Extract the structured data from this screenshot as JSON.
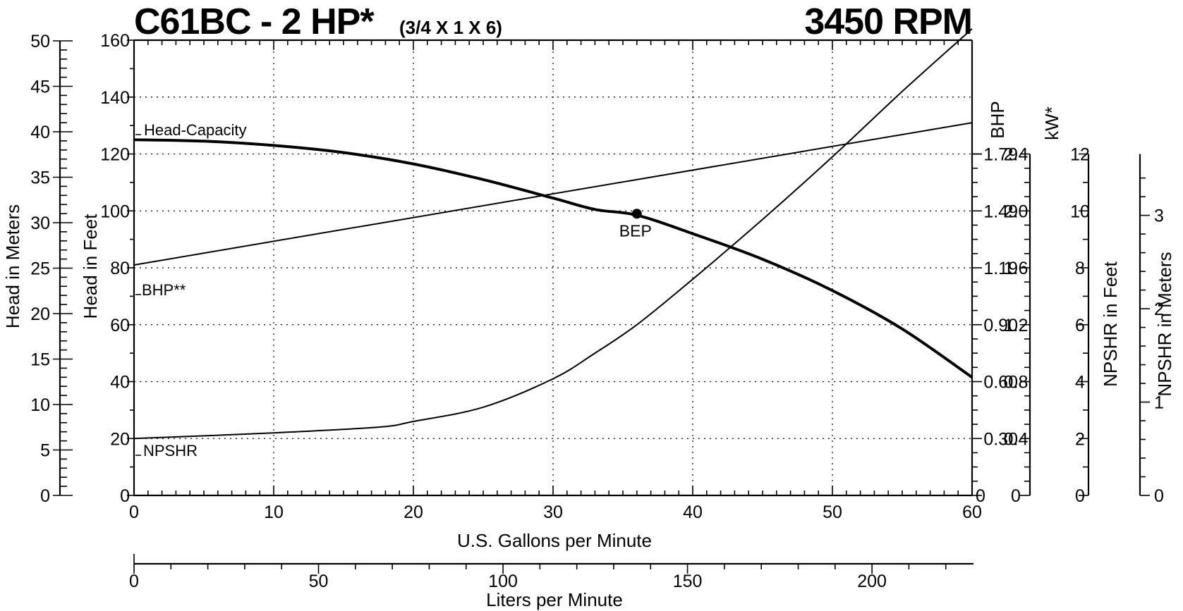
{
  "chart_data": {
    "type": "line",
    "title": "C61BC - 2 HP*",
    "subtitle": "(3/4 X 1 X 6)",
    "speed_label": "3450 RPM",
    "xlabel": "U.S. Gallons per Minute",
    "xlim": [
      0,
      60
    ],
    "x_ticks": [
      0,
      10,
      20,
      30,
      40,
      50,
      60
    ],
    "x2label": "Liters per Minute",
    "x2_ticks": [
      0,
      50,
      100,
      150,
      200
    ],
    "ylabel": "Head in Feet",
    "ylim": [
      0,
      160
    ],
    "y_ticks": [
      0,
      20,
      40,
      60,
      80,
      100,
      120,
      140,
      160
    ],
    "y_meters_label": "Head in Meters",
    "y_meters_ticks": [
      0,
      5,
      10,
      15,
      20,
      25,
      30,
      35,
      40,
      45,
      50
    ],
    "bhp_label": "BHP",
    "bhp_ticks": [
      "0",
      "0.4",
      "0.8",
      "1.2",
      "1.6",
      "2.0",
      "2.4"
    ],
    "kw_label": "kW*",
    "kw_ticks": [
      "0",
      "0.30",
      "0.60",
      "0.90",
      "1.19",
      "1.49",
      "1.79"
    ],
    "npshr_ft_label": "NPSHR in Feet",
    "npshr_ft_ticks": [
      "0",
      "2",
      "4",
      "6",
      "8",
      "10",
      "12"
    ],
    "npshr_m_label": "NPSHR in Meters",
    "npshr_m_ticks": [
      "0",
      "1",
      "2",
      "3"
    ],
    "grid": true,
    "series": [
      {
        "name": "Head-Capacity",
        "x": [
          0,
          5,
          10,
          15,
          20,
          25,
          30,
          33,
          36,
          40,
          45,
          50,
          55,
          60
        ],
        "y": [
          125,
          124.5,
          123,
          120.5,
          116.5,
          111,
          104.5,
          100.5,
          98.5,
          92,
          83,
          72,
          58.5,
          41.5
        ]
      },
      {
        "name": "BHP**",
        "x": [
          0,
          60
        ],
        "y": [
          1.62,
          2.62
        ]
      },
      {
        "name": "NPSHR",
        "x": [
          0,
          10,
          17.5,
          20,
          25,
          30,
          33,
          36,
          40,
          45,
          50,
          55,
          60
        ],
        "y": [
          2.0,
          2.2,
          2.4,
          2.6,
          3.1,
          4.1,
          5.0,
          6.0,
          7.6,
          9.7,
          11.9,
          14.2,
          16.4
        ]
      }
    ],
    "annotations": {
      "bep_label": "BEP",
      "bep_x": 36,
      "bep_y": 99
    }
  }
}
